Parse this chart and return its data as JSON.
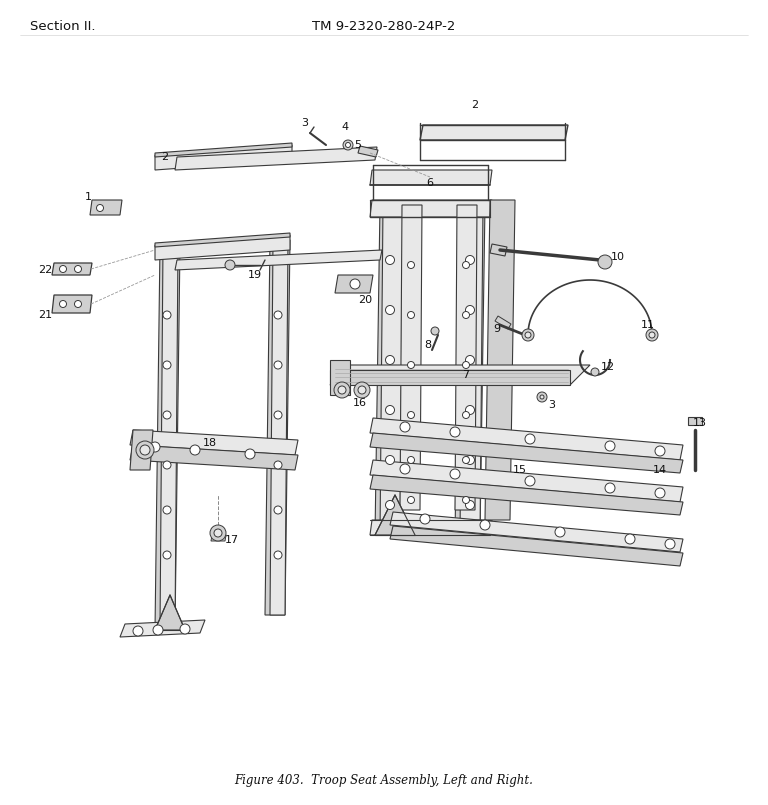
{
  "header_left": "Section II.",
  "header_right": "TM 9-2320-280-24P-2",
  "caption": "Figure 403.  Troop Seat Assembly, Left and Right.",
  "background_color": "#ffffff",
  "line_color": "#3a3a3a",
  "fill_light": "#e8e8e8",
  "fill_mid": "#d0d0d0",
  "fill_dark": "#b8b8b8",
  "white": "#ffffff",
  "header_fontsize": 9.5,
  "caption_fontsize": 8.5,
  "label_fontsize": 8,
  "fig_width": 7.68,
  "fig_height": 8.05,
  "dpi": 100
}
